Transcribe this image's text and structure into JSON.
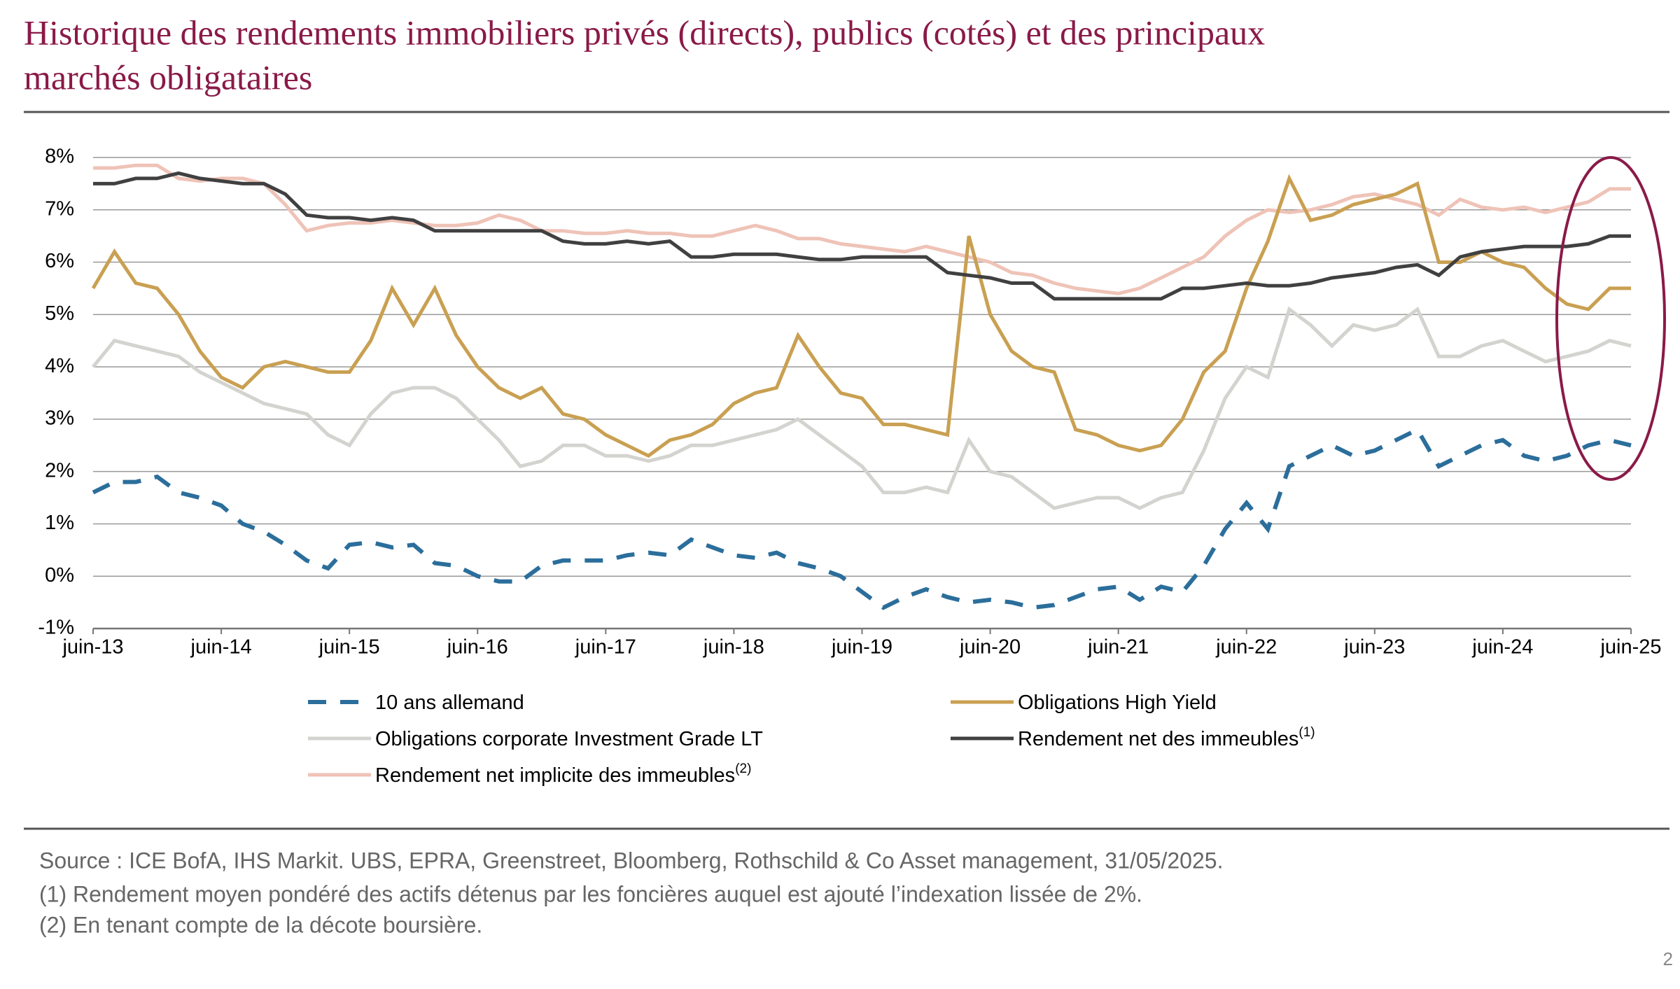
{
  "chart_data": {
    "type": "line",
    "title": [
      "Historique des rendements immobiliers privés (directs), publics (cotés) et des principaux",
      "marchés obligataires"
    ],
    "x": [
      "2013-06",
      "2013-08",
      "2013-10",
      "2013-12",
      "2014-02",
      "2014-04",
      "2014-06",
      "2014-08",
      "2014-10",
      "2014-12",
      "2015-02",
      "2015-04",
      "2015-06",
      "2015-08",
      "2015-10",
      "2015-12",
      "2016-02",
      "2016-04",
      "2016-06",
      "2016-08",
      "2016-10",
      "2016-12",
      "2017-02",
      "2017-04",
      "2017-06",
      "2017-08",
      "2017-10",
      "2017-12",
      "2018-02",
      "2018-04",
      "2018-06",
      "2018-08",
      "2018-10",
      "2018-12",
      "2019-02",
      "2019-04",
      "2019-06",
      "2019-08",
      "2019-10",
      "2019-12",
      "2020-02",
      "2020-04",
      "2020-06",
      "2020-08",
      "2020-10",
      "2020-12",
      "2021-02",
      "2021-04",
      "2021-06",
      "2021-08",
      "2021-10",
      "2021-12",
      "2022-02",
      "2022-04",
      "2022-06",
      "2022-08",
      "2022-10",
      "2022-12",
      "2023-02",
      "2023-04",
      "2023-06",
      "2023-08",
      "2023-10",
      "2023-12",
      "2024-02",
      "2024-04",
      "2024-06",
      "2024-08",
      "2024-10",
      "2024-12",
      "2025-02",
      "2025-04",
      "2025-06"
    ],
    "xticks": [
      {
        "value": "2013-06",
        "label": "juin-13"
      },
      {
        "value": "2014-06",
        "label": "juin-14"
      },
      {
        "value": "2015-06",
        "label": "juin-15"
      },
      {
        "value": "2016-06",
        "label": "juin-16"
      },
      {
        "value": "2017-06",
        "label": "juin-17"
      },
      {
        "value": "2018-06",
        "label": "juin-18"
      },
      {
        "value": "2019-06",
        "label": "juin-19"
      },
      {
        "value": "2020-06",
        "label": "juin-20"
      },
      {
        "value": "2021-06",
        "label": "juin-21"
      },
      {
        "value": "2022-06",
        "label": "juin-22"
      },
      {
        "value": "2023-06",
        "label": "juin-23"
      },
      {
        "value": "2024-06",
        "label": "juin-24"
      },
      {
        "value": "2025-06",
        "label": "juin-25"
      }
    ],
    "ylim": [
      -1,
      8
    ],
    "yticks": [
      {
        "value": -1,
        "label": "-1%"
      },
      {
        "value": 0,
        "label": "0%"
      },
      {
        "value": 1,
        "label": "1%"
      },
      {
        "value": 2,
        "label": "2%"
      },
      {
        "value": 3,
        "label": "3%"
      },
      {
        "value": 4,
        "label": "4%"
      },
      {
        "value": 5,
        "label": "5%"
      },
      {
        "value": 6,
        "label": "6%"
      },
      {
        "value": 7,
        "label": "7%"
      },
      {
        "value": 8,
        "label": "8%"
      }
    ],
    "grid": true,
    "series": [
      {
        "name": "10 ans allemand",
        "color": "#2b6e9b",
        "dashed": true,
        "values": [
          1.6,
          1.8,
          1.8,
          1.9,
          1.6,
          1.5,
          1.35,
          1.0,
          0.85,
          0.6,
          0.3,
          0.15,
          0.6,
          0.65,
          0.55,
          0.6,
          0.25,
          0.2,
          0.0,
          -0.1,
          -0.1,
          0.2,
          0.3,
          0.3,
          0.3,
          0.4,
          0.45,
          0.4,
          0.7,
          0.55,
          0.4,
          0.35,
          0.45,
          0.25,
          0.15,
          0.0,
          -0.3,
          -0.6,
          -0.4,
          -0.25,
          -0.4,
          -0.5,
          -0.45,
          -0.5,
          -0.6,
          -0.55,
          -0.4,
          -0.25,
          -0.2,
          -0.45,
          -0.2,
          -0.3,
          0.2,
          0.9,
          1.4,
          0.9,
          2.1,
          2.3,
          2.5,
          2.3,
          2.4,
          2.6,
          2.8,
          2.1,
          2.3,
          2.5,
          2.6,
          2.3,
          2.2,
          2.3,
          2.5,
          2.6,
          2.5
        ]
      },
      {
        "name": "Obligations High Yield",
        "color": "#c9a052",
        "values": [
          5.5,
          6.2,
          5.6,
          5.5,
          5.0,
          4.3,
          3.8,
          3.6,
          4.0,
          4.1,
          4.0,
          3.9,
          3.9,
          4.5,
          5.5,
          4.8,
          5.5,
          4.6,
          4.0,
          3.6,
          3.4,
          3.6,
          3.1,
          3.0,
          2.7,
          2.5,
          2.3,
          2.6,
          2.7,
          2.9,
          3.3,
          3.5,
          3.6,
          4.6,
          4.0,
          3.5,
          3.4,
          2.9,
          2.9,
          2.8,
          2.7,
          6.5,
          5.0,
          4.3,
          4.0,
          3.9,
          2.8,
          2.7,
          2.5,
          2.4,
          2.5,
          3.0,
          3.9,
          4.3,
          5.5,
          6.4,
          7.6,
          6.8,
          6.9,
          7.1,
          7.2,
          7.3,
          7.5,
          6.0,
          6.0,
          6.2,
          6.0,
          5.9,
          5.5,
          5.2,
          5.1,
          5.5,
          5.5
        ]
      },
      {
        "name": "Obligations corporate Investment Grade LT",
        "color": "#d3d3cf",
        "values": [
          4.0,
          4.5,
          4.4,
          4.3,
          4.2,
          3.9,
          3.7,
          3.5,
          3.3,
          3.2,
          3.1,
          2.7,
          2.5,
          3.1,
          3.5,
          3.6,
          3.6,
          3.4,
          3.0,
          2.6,
          2.1,
          2.2,
          2.5,
          2.5,
          2.3,
          2.3,
          2.2,
          2.3,
          2.5,
          2.5,
          2.6,
          2.7,
          2.8,
          3.0,
          2.7,
          2.4,
          2.1,
          1.6,
          1.6,
          1.7,
          1.6,
          2.6,
          2.0,
          1.9,
          1.6,
          1.3,
          1.4,
          1.5,
          1.5,
          1.3,
          1.5,
          1.6,
          2.4,
          3.4,
          4.0,
          3.8,
          5.1,
          4.8,
          4.4,
          4.8,
          4.7,
          4.8,
          5.1,
          4.2,
          4.2,
          4.4,
          4.5,
          4.3,
          4.1,
          4.2,
          4.3,
          4.5,
          4.4
        ]
      },
      {
        "name": "Rendement net des immeubles",
        "note": "(1)",
        "color": "#404040",
        "values": [
          7.5,
          7.5,
          7.6,
          7.6,
          7.7,
          7.6,
          7.55,
          7.5,
          7.5,
          7.3,
          6.9,
          6.85,
          6.85,
          6.8,
          6.85,
          6.8,
          6.6,
          6.6,
          6.6,
          6.6,
          6.6,
          6.6,
          6.4,
          6.35,
          6.35,
          6.4,
          6.35,
          6.4,
          6.1,
          6.1,
          6.15,
          6.15,
          6.15,
          6.1,
          6.05,
          6.05,
          6.1,
          6.1,
          6.1,
          6.1,
          5.8,
          5.75,
          5.7,
          5.6,
          5.6,
          5.3,
          5.3,
          5.3,
          5.3,
          5.3,
          5.3,
          5.5,
          5.5,
          5.55,
          5.6,
          5.55,
          5.55,
          5.6,
          5.7,
          5.75,
          5.8,
          5.9,
          5.95,
          5.75,
          6.1,
          6.2,
          6.25,
          6.3,
          6.3,
          6.3,
          6.35,
          6.5,
          6.5
        ]
      },
      {
        "name": "Rendement net implicite des immeubles",
        "note": "(2)",
        "color": "#efc3b7",
        "values": [
          7.8,
          7.8,
          7.85,
          7.85,
          7.6,
          7.55,
          7.6,
          7.6,
          7.5,
          7.1,
          6.6,
          6.7,
          6.75,
          6.75,
          6.8,
          6.75,
          6.7,
          6.7,
          6.75,
          6.9,
          6.8,
          6.6,
          6.6,
          6.55,
          6.55,
          6.6,
          6.55,
          6.55,
          6.5,
          6.5,
          6.6,
          6.7,
          6.6,
          6.45,
          6.45,
          6.35,
          6.3,
          6.25,
          6.2,
          6.3,
          6.2,
          6.1,
          6.0,
          5.8,
          5.75,
          5.6,
          5.5,
          5.45,
          5.4,
          5.5,
          5.7,
          5.9,
          6.1,
          6.5,
          6.8,
          7.0,
          6.95,
          7.0,
          7.1,
          7.25,
          7.3,
          7.2,
          7.1,
          6.9,
          7.2,
          7.05,
          7.0,
          7.05,
          6.95,
          7.05,
          7.15,
          7.4,
          7.4
        ]
      }
    ],
    "notes": [
      "Source : ICE BofA, IHS Markit. UBS, EPRA, Greenstreet, Bloomberg, Rothschild & Co Asset management, 31/05/2025.",
      "(1) Rendement moyen pondéré des actifs détenus par les foncières auquel est ajouté l’indexation lissée de 2%.",
      "(2) En tenant compte de la décote boursière."
    ],
    "page_number": "2"
  }
}
